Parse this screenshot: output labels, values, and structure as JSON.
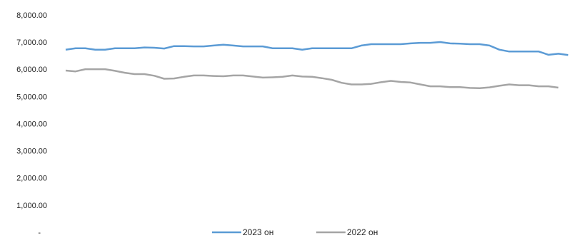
{
  "chart_data": {
    "type": "line",
    "categories": [
      null,
      null,
      null,
      null,
      null,
      null,
      null,
      null,
      null,
      null,
      null,
      null,
      null,
      null,
      null,
      null,
      null,
      null,
      null,
      null,
      null,
      null,
      null,
      null,
      null,
      null,
      null,
      null,
      null,
      null,
      null,
      null,
      null,
      null,
      null,
      null,
      null,
      null,
      null,
      null,
      null,
      null,
      null,
      null,
      null,
      null,
      null,
      null,
      null,
      null,
      null,
      null
    ],
    "series": [
      {
        "name": "2023 он",
        "color": "#5b9bd5",
        "values": [
          6750,
          6800,
          6800,
          6750,
          6750,
          6800,
          6800,
          6800,
          6830,
          6820,
          6790,
          6880,
          6880,
          6870,
          6870,
          6900,
          6930,
          6900,
          6870,
          6870,
          6870,
          6800,
          6800,
          6800,
          6750,
          6800,
          6800,
          6800,
          6800,
          6800,
          6900,
          6950,
          6950,
          6950,
          6950,
          6980,
          7000,
          7000,
          7030,
          6980,
          6970,
          6950,
          6950,
          6900,
          6750,
          6680,
          6680,
          6680,
          6680,
          6560,
          6600,
          6550
        ]
      },
      {
        "name": "2022 он",
        "color": "#a5a5a5",
        "values": [
          5980,
          5950,
          6030,
          6030,
          6030,
          5970,
          5900,
          5850,
          5850,
          5790,
          5680,
          5690,
          5750,
          5800,
          5800,
          5780,
          5770,
          5800,
          5800,
          5760,
          5720,
          5730,
          5750,
          5800,
          5760,
          5750,
          5700,
          5640,
          5530,
          5470,
          5470,
          5490,
          5550,
          5600,
          5560,
          5540,
          5470,
          5400,
          5400,
          5370,
          5370,
          5340,
          5330,
          5360,
          5420,
          5470,
          5440,
          5440,
          5400,
          5400,
          5350,
          null
        ]
      }
    ],
    "ylim": [
      0,
      8000
    ],
    "yticks": [
      {
        "value": 0,
        "label": "-"
      },
      {
        "value": 1000,
        "label": "1,000.00"
      },
      {
        "value": 2000,
        "label": "2,000.00"
      },
      {
        "value": 3000,
        "label": "3,000.00"
      },
      {
        "value": 4000,
        "label": "4,000.00"
      },
      {
        "value": 5000,
        "label": "5,000.00"
      },
      {
        "value": 6000,
        "label": "6,000.00"
      },
      {
        "value": 7000,
        "label": "7,000.00"
      },
      {
        "value": 8000,
        "label": "8,000.00"
      }
    ],
    "grid": false,
    "legend": "bottom"
  }
}
